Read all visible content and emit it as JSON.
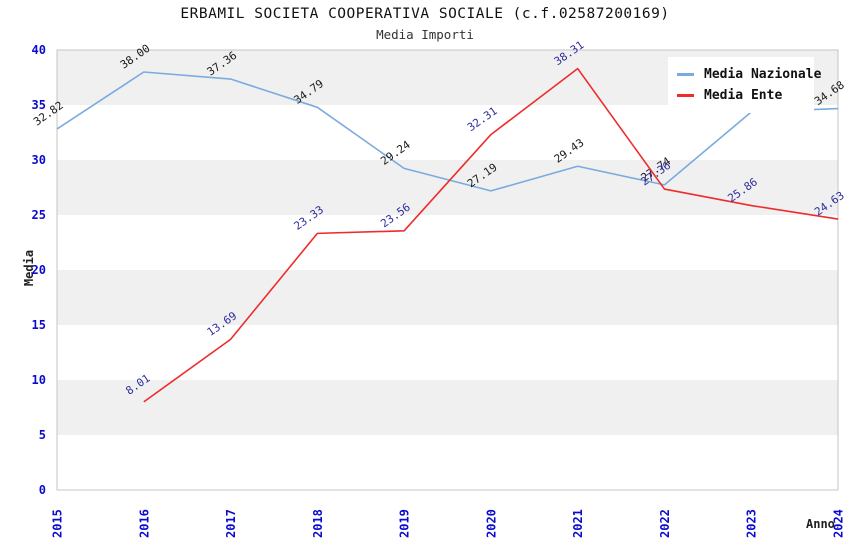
{
  "chart_data": {
    "type": "line",
    "title": "ERBAMIL SOCIETA COOPERATIVA SOCIALE (c.f.02587200169)",
    "subtitle": "Media Importi",
    "xlabel": "Anno",
    "ylabel": "Media",
    "categories": [
      "2015",
      "2016",
      "2017",
      "2018",
      "2019",
      "2020",
      "2021",
      "2022",
      "2023",
      "2024"
    ],
    "ylim": [
      0,
      40
    ],
    "ytick_step": 5,
    "yticks": [
      "0",
      "5",
      "10",
      "15",
      "20",
      "25",
      "30",
      "35",
      "40"
    ],
    "grid": "alternating horizontal gray bands every 5 units",
    "legend_position": "top-right",
    "series": [
      {
        "name": "Media Nazionale",
        "color": "#7aabdf",
        "label_color": "#1a1a1a",
        "x": [
          "2015",
          "2016",
          "2017",
          "2018",
          "2019",
          "2020",
          "2021",
          "2022",
          "2023",
          "2024"
        ],
        "values": [
          32.82,
          38.0,
          37.36,
          34.79,
          29.24,
          27.19,
          29.43,
          27.74,
          34.36,
          34.68
        ],
        "labels": [
          "32.82",
          "38.00",
          "37.36",
          "34.79",
          "29.24",
          "27.19",
          "29.43",
          "27.74",
          "34.36",
          "34.68"
        ]
      },
      {
        "name": "Media Ente",
        "color": "#ee2c2c",
        "label_color": "#2e2ea0",
        "x": [
          "2016",
          "2017",
          "2018",
          "2019",
          "2020",
          "2021",
          "2022",
          "2023",
          "2024"
        ],
        "values": [
          8.01,
          13.69,
          23.33,
          23.56,
          32.31,
          38.31,
          27.36,
          25.86,
          24.63
        ],
        "labels": [
          "8.01",
          "13.69",
          "23.33",
          "23.56",
          "32.31",
          "38.31",
          "27.36",
          "25.86",
          "24.63"
        ]
      }
    ],
    "colors": {
      "tick_label": "#0b0bce",
      "band_gray": "#f0f0f0",
      "axis_border": "#c4c4c4",
      "background": "#ffffff"
    }
  }
}
